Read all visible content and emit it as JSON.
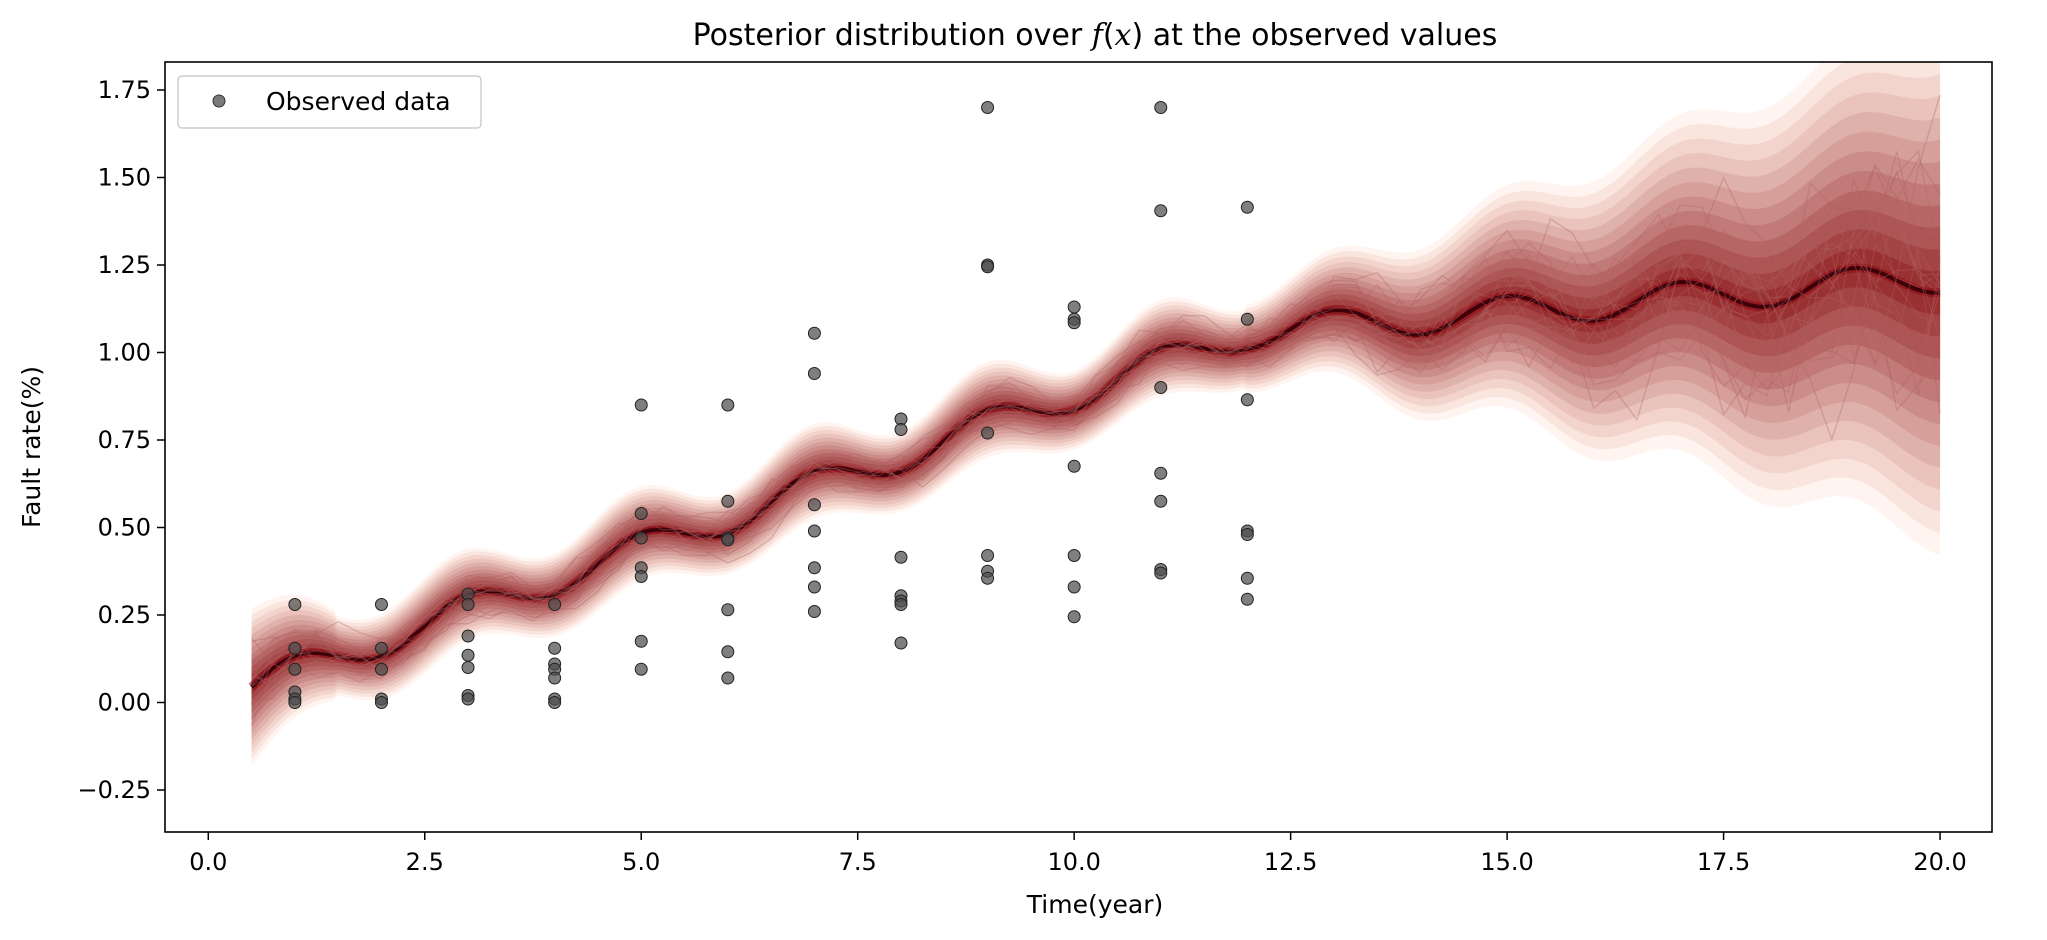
{
  "chart_data": {
    "type": "scatter",
    "title_prefix": "Posterior distribution over ",
    "title_math": "f",
    "title_math_open": "(",
    "title_math_x": "x",
    "title_math_close": ")",
    "title_suffix": " at the observed values",
    "xlabel": "Time(year)",
    "ylabel": "Fault rate(%)",
    "xlim": [
      -0.5,
      20.6
    ],
    "ylim": [
      -0.37,
      1.83
    ],
    "xticks": [
      0.0,
      2.5,
      5.0,
      7.5,
      10.0,
      12.5,
      15.0,
      17.5,
      20.0
    ],
    "xtick_labels": [
      "0.0",
      "2.5",
      "5.0",
      "7.5",
      "10.0",
      "12.5",
      "15.0",
      "17.5",
      "20.0"
    ],
    "yticks": [
      -0.25,
      0.0,
      0.25,
      0.5,
      0.75,
      1.0,
      1.25,
      1.5,
      1.75
    ],
    "ytick_labels": [
      "−0.25",
      "0.00",
      "0.25",
      "0.50",
      "0.75",
      "1.00",
      "1.25",
      "1.50",
      "1.75"
    ],
    "grid": false,
    "legend": {
      "position": "top-left",
      "entries": [
        "Observed data"
      ]
    },
    "colors": {
      "observed": "#4d4d4d",
      "band_dark": "#67000d",
      "band_mid": "#e8412c",
      "band_light": "#fff0e8",
      "sample_lines": "#b06060"
    },
    "series": [
      {
        "name": "Observed data",
        "points": [
          [
            1,
            0.28
          ],
          [
            1,
            0.155
          ],
          [
            1,
            0.095
          ],
          [
            1,
            0.03
          ],
          [
            1,
            0.01
          ],
          [
            1,
            0.0
          ],
          [
            2,
            0.28
          ],
          [
            2,
            0.155
          ],
          [
            2,
            0.095
          ],
          [
            2,
            0.01
          ],
          [
            2,
            0.0
          ],
          [
            3,
            0.31
          ],
          [
            3,
            0.28
          ],
          [
            3,
            0.19
          ],
          [
            3,
            0.135
          ],
          [
            3,
            0.1
          ],
          [
            3,
            0.02
          ],
          [
            3,
            0.01
          ],
          [
            4,
            0.28
          ],
          [
            4,
            0.155
          ],
          [
            4,
            0.11
          ],
          [
            4,
            0.095
          ],
          [
            4,
            0.07
          ],
          [
            4,
            0.01
          ],
          [
            4,
            0.0
          ],
          [
            5,
            0.85
          ],
          [
            5,
            0.54
          ],
          [
            5,
            0.47
          ],
          [
            5,
            0.385
          ],
          [
            5,
            0.36
          ],
          [
            5,
            0.175
          ],
          [
            5,
            0.095
          ],
          [
            6,
            0.85
          ],
          [
            6,
            0.575
          ],
          [
            6,
            0.47
          ],
          [
            6,
            0.465
          ],
          [
            6,
            0.265
          ],
          [
            6,
            0.145
          ],
          [
            6,
            0.07
          ],
          [
            7,
            1.055
          ],
          [
            7,
            0.94
          ],
          [
            7,
            0.565
          ],
          [
            7,
            0.49
          ],
          [
            7,
            0.385
          ],
          [
            7,
            0.33
          ],
          [
            7,
            0.26
          ],
          [
            8,
            0.81
          ],
          [
            8,
            0.78
          ],
          [
            8,
            0.415
          ],
          [
            8,
            0.305
          ],
          [
            8,
            0.29
          ],
          [
            8,
            0.28
          ],
          [
            8,
            0.17
          ],
          [
            9,
            1.7
          ],
          [
            9,
            1.25
          ],
          [
            9,
            1.245
          ],
          [
            9,
            0.77
          ],
          [
            9,
            0.42
          ],
          [
            9,
            0.375
          ],
          [
            9,
            0.355
          ],
          [
            10,
            1.13
          ],
          [
            10,
            1.095
          ],
          [
            10,
            1.085
          ],
          [
            10,
            0.675
          ],
          [
            10,
            0.42
          ],
          [
            10,
            0.33
          ],
          [
            10,
            0.245
          ],
          [
            11,
            1.7
          ],
          [
            11,
            1.405
          ],
          [
            11,
            0.9
          ],
          [
            11,
            0.655
          ],
          [
            11,
            0.575
          ],
          [
            11,
            0.38
          ],
          [
            11,
            0.37
          ],
          [
            12,
            1.415
          ],
          [
            12,
            1.095
          ],
          [
            12,
            0.865
          ],
          [
            12,
            0.49
          ],
          [
            12,
            0.48
          ],
          [
            12,
            0.355
          ],
          [
            12,
            0.295
          ]
        ]
      }
    ],
    "posterior": {
      "x_range": [
        0.5,
        20.0
      ],
      "mean_trend": {
        "intercept": 0.0,
        "slope": 0.088,
        "slope_after_12": 0.02
      },
      "oscillation": {
        "amplitude": 0.045,
        "period": 2.0
      },
      "band_width_start": 0.18,
      "band_width_mid": 0.1,
      "band_width_end": 0.6
    }
  }
}
